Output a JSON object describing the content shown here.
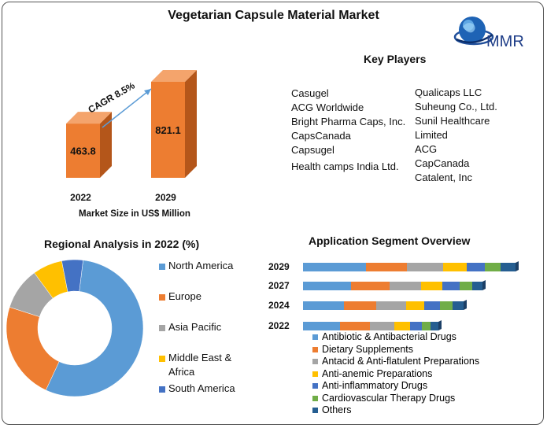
{
  "title": "Vegetarian Capsule Material Market",
  "logo": {
    "text": "MMR",
    "icon": "globe-logo-icon"
  },
  "market_size": {
    "cagr_label": "CAGR 8.5%",
    "xlabel": "Market Size in US$ Million",
    "bars": [
      {
        "year": "2022",
        "value": 463.8,
        "label": "463.8"
      },
      {
        "year": "2029",
        "value": 821.1,
        "label": "821.1"
      }
    ],
    "color": "#ED7D31"
  },
  "key_players": {
    "heading": "Key Players",
    "col1": [
      "Casugel",
      "ACG Worldwide",
      "Bright Pharma Caps, Inc.",
      "CapsCanada",
      "Capsugel",
      "Health camps India Ltd."
    ],
    "col2": [
      "Qualicaps LLC",
      "Suheung Co., Ltd.",
      "Sunil Healthcare",
      "Limited",
      "ACG",
      "CapCanada",
      "Catalent, Inc"
    ]
  },
  "regional": {
    "heading": "Regional Analysis in 2022 (%)",
    "legend": [
      {
        "label": "North America",
        "color": "#5B9BD5"
      },
      {
        "label": "Europe",
        "color": "#ED7D31"
      },
      {
        "label": "Asia Pacific",
        "color": "#A5A5A5"
      },
      {
        "label": "Middle East &",
        "label2": "Africa",
        "color": "#FFC000"
      },
      {
        "label": "South America",
        "color": "#4472C4"
      }
    ]
  },
  "application": {
    "heading": "Application Segment Overview",
    "legend": [
      {
        "label": "Antibiotic & Antibacterial Drugs",
        "color": "#5B9BD5"
      },
      {
        "label": "Dietary Supplements",
        "color": "#ED7D31"
      },
      {
        "label": "Antacid & Anti-flatulent Preparations",
        "color": "#A5A5A5"
      },
      {
        "label": "Anti-anemic Preparations",
        "color": "#FFC000"
      },
      {
        "label": "Anti-inflammatory Drugs",
        "color": "#4472C4"
      },
      {
        "label": "Cardiovascular Therapy Drugs",
        "color": "#70AD47"
      },
      {
        "label": "Others",
        "color": "#255E91"
      }
    ]
  },
  "chart_data": [
    {
      "type": "bar",
      "categories": [
        "2022",
        "2029"
      ],
      "values": [
        463.8,
        821.1
      ],
      "xlabel": "Market Size in US$ Million",
      "annotation": "CAGR 8.5%"
    },
    {
      "type": "pie",
      "title": "Regional Analysis in 2022 (%)",
      "labels": [
        "North America",
        "Europe",
        "Asia Pacific",
        "Middle East & Africa",
        "South America"
      ],
      "values": [
        55,
        23,
        10,
        7,
        5
      ],
      "colors": [
        "#5B9BD5",
        "#ED7D31",
        "#A5A5A5",
        "#FFC000",
        "#4472C4"
      ]
    },
    {
      "type": "bar",
      "orientation": "horizontal",
      "stacked": true,
      "title": "Application Segment Overview",
      "categories": [
        "2029",
        "2027",
        "2024",
        "2022"
      ],
      "series": [
        {
          "name": "Antibiotic & Antibacterial Drugs",
          "values": [
            80,
            61,
            52,
            47
          ]
        },
        {
          "name": "Dietary Supplements",
          "values": [
            52,
            49,
            41,
            38
          ]
        },
        {
          "name": "Antacid & Anti-flatulent Preparations",
          "values": [
            46,
            40,
            38,
            31
          ]
        },
        {
          "name": "Anti-anemic Preparations",
          "values": [
            30,
            27,
            23,
            20
          ]
        },
        {
          "name": "Anti-inflammatory Drugs",
          "values": [
            23,
            22,
            20,
            15
          ]
        },
        {
          "name": "Cardiovascular Therapy Drugs",
          "values": [
            20,
            16,
            16,
            11
          ]
        },
        {
          "name": "Others",
          "values": [
            19,
            13,
            14,
            10
          ]
        }
      ]
    }
  ]
}
